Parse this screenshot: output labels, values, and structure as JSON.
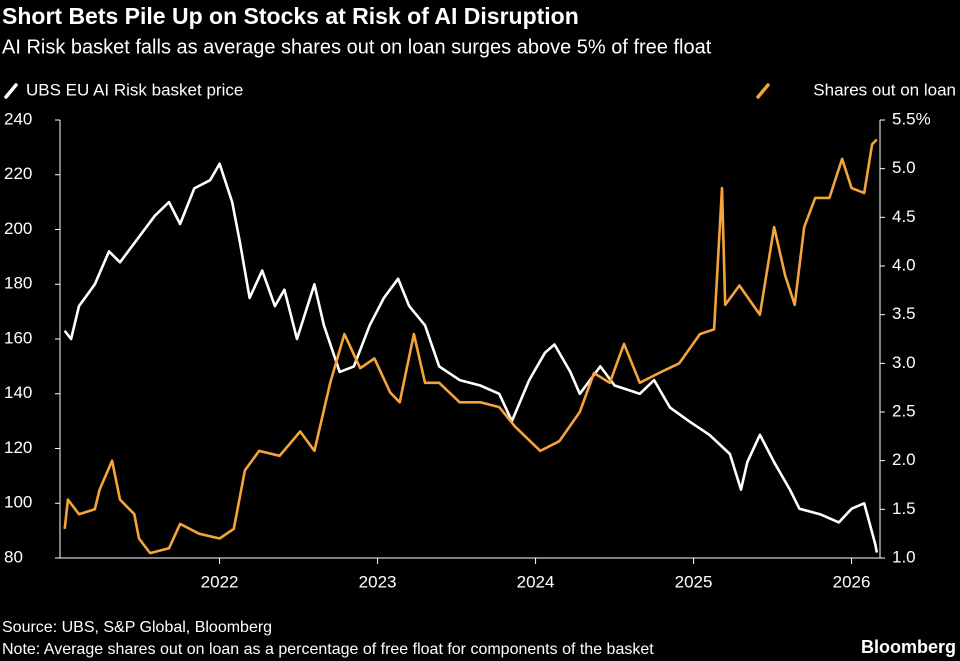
{
  "chart_data": {
    "type": "line",
    "title": "Short Bets Pile Up on Stocks at Risk of AI Disruption",
    "subtitle": "AI Risk basket falls as average shares out on loan surges above 5% of free float",
    "xlim": [
      2020.99,
      2026.18
    ],
    "xticks": [
      2022,
      2023,
      2024,
      2025,
      2026
    ],
    "ylim": [
      80,
      240
    ],
    "yticks": [
      80,
      100,
      120,
      140,
      160,
      180,
      200,
      220,
      240
    ],
    "y2lim": [
      1.0,
      5.5
    ],
    "y2ticks": [
      {
        "value": 1.0,
        "label": "1.0"
      },
      1.5,
      {
        "value": 2.0,
        "label": "2.0"
      },
      2.5,
      {
        "value": 3.0,
        "label": "3.0"
      },
      3.5,
      {
        "value": 4.0,
        "label": "4.0"
      },
      4.5,
      {
        "value": 5.0,
        "label": "5.0"
      },
      {
        "value": 5.5,
        "label": "5.5%"
      }
    ],
    "grid": false,
    "series": [
      {
        "name": "UBS EU AI Risk basket price",
        "color": "#ffffff",
        "axis": "y",
        "x": [
          2021.02,
          2021.06,
          2021.11,
          2021.21,
          2021.3,
          2021.37,
          2021.46,
          2021.59,
          2021.68,
          2021.75,
          2021.84,
          2021.94,
          2022.0,
          2022.08,
          2022.13,
          2022.19,
          2022.27,
          2022.35,
          2022.41,
          2022.49,
          2022.6,
          2022.66,
          2022.76,
          2022.85,
          2022.95,
          2023.04,
          2023.13,
          2023.2,
          2023.3,
          2023.39,
          2023.52,
          2023.65,
          2023.77,
          2023.85,
          2023.96,
          2024.06,
          2024.12,
          2024.22,
          2024.28,
          2024.41,
          2024.5,
          2024.66,
          2024.75,
          2024.85,
          2024.97,
          2025.1,
          2025.23,
          2025.3,
          2025.34,
          2025.42,
          2025.51,
          2025.61,
          2025.67,
          2025.8,
          2025.92,
          2026.0,
          2026.08,
          2026.15,
          2026.16
        ],
        "values": [
          163,
          160,
          172,
          180,
          192,
          188,
          195,
          205,
          210,
          202,
          215,
          218,
          224,
          210,
          195,
          175,
          185,
          172,
          178,
          160,
          180,
          165,
          148,
          150,
          165,
          175,
          182,
          172,
          165,
          150,
          145,
          143,
          140,
          130,
          145,
          155,
          158,
          148,
          140,
          150,
          143,
          140,
          145,
          135,
          130,
          125,
          118,
          105,
          115,
          125,
          115,
          105,
          98,
          96,
          93,
          98,
          100,
          85,
          82
        ]
      },
      {
        "name": "Shares out on loan",
        "color": "#f5a43a",
        "axis": "y2",
        "x": [
          2021.02,
          2021.04,
          2021.11,
          2021.21,
          2021.24,
          2021.32,
          2021.37,
          2021.46,
          2021.49,
          2021.56,
          2021.68,
          2021.75,
          2021.87,
          2022.0,
          2022.09,
          2022.16,
          2022.25,
          2022.38,
          2022.51,
          2022.6,
          2022.7,
          2022.79,
          2022.89,
          2022.98,
          2023.08,
          2023.14,
          2023.23,
          2023.3,
          2023.39,
          2023.52,
          2023.65,
          2023.77,
          2023.87,
          2024.03,
          2024.15,
          2024.28,
          2024.37,
          2024.47,
          2024.56,
          2024.66,
          2024.78,
          2024.91,
          2025.04,
          2025.13,
          2025.18,
          2025.2,
          2025.29,
          2025.42,
          2025.51,
          2025.58,
          2025.64,
          2025.7,
          2025.77,
          2025.86,
          2025.94,
          2026.0,
          2026.08,
          2026.13,
          2026.16
        ],
        "values": [
          1.3,
          1.6,
          1.45,
          1.5,
          1.7,
          2.0,
          1.6,
          1.45,
          1.2,
          1.05,
          1.1,
          1.35,
          1.25,
          1.2,
          1.3,
          1.9,
          2.1,
          2.05,
          2.3,
          2.1,
          2.8,
          3.3,
          2.95,
          3.05,
          2.7,
          2.6,
          3.3,
          2.8,
          2.8,
          2.6,
          2.6,
          2.55,
          2.35,
          2.1,
          2.2,
          2.5,
          2.9,
          2.8,
          3.2,
          2.8,
          2.9,
          3.0,
          3.3,
          3.35,
          4.8,
          3.6,
          3.8,
          3.5,
          4.4,
          3.9,
          3.6,
          4.4,
          4.7,
          4.7,
          5.1,
          4.8,
          4.75,
          5.25,
          5.3
        ]
      }
    ]
  },
  "source": "Source: UBS, S&P Global, Bloomberg",
  "note": "Note: Average shares out on loan as a percentage of free float for components of the basket",
  "brand": "Bloomberg"
}
